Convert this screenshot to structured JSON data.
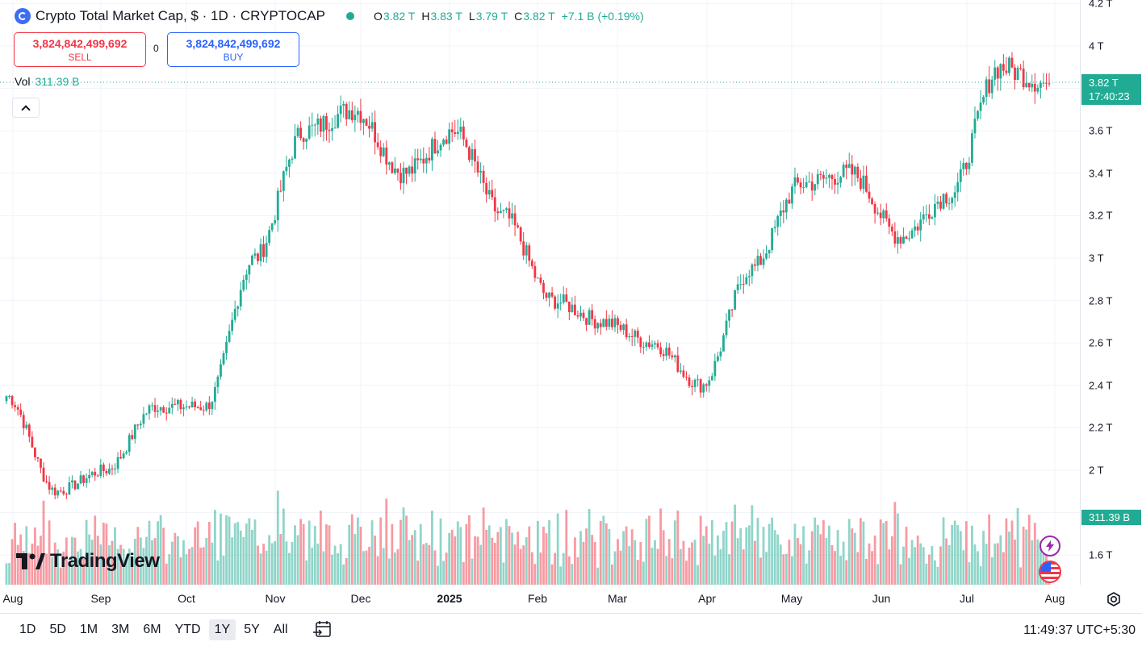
{
  "header": {
    "symbol": "Crypto Total Market Cap, $ · 1D · CRYPTOCAP",
    "ohlc": [
      {
        "k": "O",
        "v": "3.82 T"
      },
      {
        "k": "H",
        "v": "3.83 T"
      },
      {
        "k": "L",
        "v": "3.79 T"
      },
      {
        "k": "C",
        "v": "3.82 T"
      }
    ],
    "change": "+7.1 B (+0.19%)"
  },
  "trade": {
    "sell_value": "3,824,842,499,692",
    "sell_label": "SELL",
    "buy_value": "3,824,842,499,692",
    "buy_label": "BUY",
    "spread": "0"
  },
  "volume": {
    "label": "Vol",
    "value": "311.39 B"
  },
  "price_scale": {
    "ticks": [
      "4.2 T",
      "4 T",
      "3.6 T",
      "3.4 T",
      "3.2 T",
      "3 T",
      "2.8 T",
      "2.6 T",
      "2.4 T",
      "2.2 T",
      "2 T",
      "1.6 T"
    ],
    "current_price": "3.82 T",
    "countdown": "17:40:23",
    "volume_value": "311.39 B"
  },
  "time_axis": [
    "Aug",
    "Sep",
    "Oct",
    "Nov",
    "Dec",
    "2025",
    "Feb",
    "Mar",
    "Apr",
    "May",
    "Jun",
    "Jul",
    "Aug"
  ],
  "ranges": [
    "1D",
    "5D",
    "1M",
    "3M",
    "6M",
    "YTD",
    "1Y",
    "5Y",
    "All"
  ],
  "active_range": "1Y",
  "clock": "11:49:37 UTC+5:30",
  "logo": "TradingView",
  "colors": {
    "up": "#22ab94",
    "down": "#f23645",
    "buy": "#2962ff"
  },
  "chart_data": {
    "type": "candlestick",
    "unit": "T",
    "ylim": [
      1.45,
      4.25
    ],
    "x_range": [
      "Aug",
      "Aug"
    ],
    "key_points": [
      {
        "x": "Aug",
        "y": 2.35
      },
      {
        "x": "Aug",
        "y": 1.9
      },
      {
        "x": "Sep",
        "y": 2.0
      },
      {
        "x": "Oct",
        "y": 2.3
      },
      {
        "x": "Nov",
        "y": 2.3
      },
      {
        "x": "Nov",
        "y": 3.0
      },
      {
        "x": "Dec",
        "y": 3.6
      },
      {
        "x": "Dec",
        "y": 3.7
      },
      {
        "x": "2025",
        "y": 3.4
      },
      {
        "x": "2025",
        "y": 3.6
      },
      {
        "x": "Feb",
        "y": 3.2
      },
      {
        "x": "Mar",
        "y": 2.8
      },
      {
        "x": "Mar",
        "y": 2.7
      },
      {
        "x": "Apr",
        "y": 2.6
      },
      {
        "x": "Apr",
        "y": 2.4
      },
      {
        "x": "May",
        "y": 2.95
      },
      {
        "x": "May",
        "y": 3.35
      },
      {
        "x": "Jun",
        "y": 3.4
      },
      {
        "x": "Jun",
        "y": 3.1
      },
      {
        "x": "Jul",
        "y": 3.3
      },
      {
        "x": "Jul",
        "y": 3.9
      },
      {
        "x": "Aug",
        "y": 3.82
      }
    ]
  }
}
